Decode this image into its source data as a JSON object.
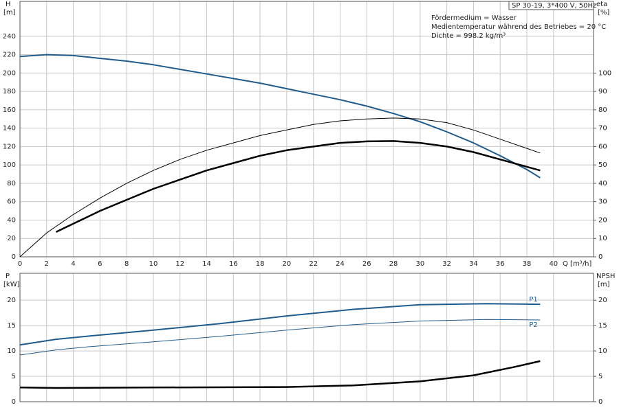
{
  "chart_data": [
    {
      "type": "line",
      "title": "SP 30-19, 3*400 V, 50Hz",
      "annotations": [
        "Fördermedium = Wasser",
        "Medientemperatur während des Betriebes = 20 °C",
        "Dichte = 998.2 kg/m³"
      ],
      "xlabel": "Q [m³/h]",
      "ylabel": [
        "H",
        "[m]"
      ],
      "y2label": [
        "eta",
        "[%]"
      ],
      "xlim": [
        0,
        43
      ],
      "xticks": [
        0,
        2,
        4,
        6,
        8,
        10,
        12,
        14,
        16,
        18,
        20,
        22,
        24,
        26,
        28,
        30,
        32,
        34,
        36,
        38,
        40
      ],
      "ylim": [
        0,
        278
      ],
      "yticks": [
        0,
        20,
        40,
        60,
        80,
        100,
        120,
        140,
        160,
        180,
        200,
        220,
        240
      ],
      "y2lim": [
        0,
        139
      ],
      "y2ticks": [
        0,
        10,
        20,
        30,
        40,
        50,
        60,
        70,
        80,
        90,
        100
      ],
      "grid": true,
      "series": [
        {
          "color": "#1f5b8c",
          "width": 2,
          "x": [
            0,
            2,
            4,
            6,
            8,
            10,
            12,
            14,
            16,
            18,
            20,
            22,
            24,
            26,
            28,
            30,
            32,
            34,
            36,
            38,
            39
          ],
          "values": [
            218,
            220,
            219,
            216,
            213,
            209,
            204,
            199,
            194,
            189,
            183,
            177,
            171,
            164,
            156,
            147,
            136,
            124,
            110,
            95,
            86
          ]
        },
        {
          "color": "#000000",
          "width": 1,
          "axis": "y2",
          "x": [
            0,
            2,
            4,
            6,
            8,
            10,
            12,
            14,
            16,
            18,
            20,
            22,
            24,
            26,
            28,
            30,
            32,
            34,
            36,
            38,
            39
          ],
          "values": [
            0,
            13,
            23,
            32,
            40,
            47,
            53,
            58,
            62,
            66,
            69,
            72,
            74,
            75,
            75.5,
            75,
            73,
            69,
            64,
            59,
            56.5
          ]
        },
        {
          "color": "#000000",
          "width": 2.5,
          "axis": "y2",
          "x": [
            2.7,
            4,
            6,
            8,
            10,
            12,
            14,
            16,
            18,
            20,
            22,
            24,
            26,
            28,
            30,
            32,
            34,
            36,
            38,
            39
          ],
          "values": [
            13.5,
            18,
            25,
            31,
            37,
            42,
            47,
            51,
            55,
            58,
            60,
            62,
            62.8,
            63,
            62,
            60,
            57,
            53,
            49,
            47
          ]
        }
      ]
    },
    {
      "type": "line",
      "ylabel": [
        "P",
        "[kW]"
      ],
      "y2label": [
        "NPSH",
        "[m]"
      ],
      "xlim": [
        0,
        43
      ],
      "ylim": [
        0,
        25.3
      ],
      "yticks": [
        0,
        5,
        10,
        15,
        20
      ],
      "y2lim": [
        0,
        25.3
      ],
      "y2ticks": [
        0,
        5,
        10,
        15,
        20
      ],
      "grid": true,
      "series": [
        {
          "name": "P1",
          "color": "#1f5b8c",
          "width": 2,
          "x": [
            0,
            2.7,
            5,
            10,
            15,
            20,
            25,
            30,
            35,
            39
          ],
          "values": [
            11.2,
            12.3,
            12.9,
            14.1,
            15.4,
            16.9,
            18.2,
            19.1,
            19.3,
            19.2
          ]
        },
        {
          "name": "P2",
          "color": "#1f5b8c",
          "width": 1,
          "x": [
            0,
            2.7,
            5,
            10,
            15,
            20,
            25,
            30,
            35,
            39
          ],
          "values": [
            9.2,
            10.2,
            10.8,
            11.8,
            12.9,
            14.1,
            15.2,
            15.9,
            16.2,
            16.1
          ]
        },
        {
          "color": "#000000",
          "width": 2.5,
          "axis": "y2",
          "x": [
            0,
            2.7,
            10,
            20,
            25,
            30,
            34,
            37,
            39
          ],
          "values": [
            2.8,
            2.7,
            2.8,
            2.9,
            3.2,
            4.0,
            5.2,
            6.8,
            8.0
          ]
        }
      ]
    }
  ]
}
